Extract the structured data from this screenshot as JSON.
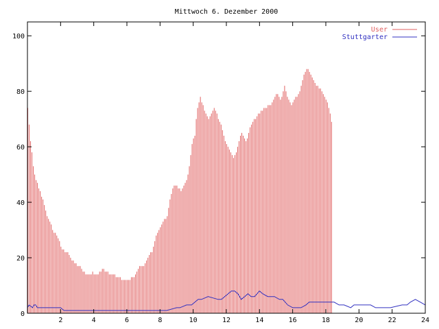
{
  "chart_data": {
    "type": "bar",
    "title": "Mittwoch 6. Dezember 2000",
    "xlabel": "",
    "ylabel": "",
    "xlim": [
      0,
      24
    ],
    "ylim": [
      0,
      105
    ],
    "x_ticks": [
      2,
      4,
      6,
      8,
      10,
      12,
      14,
      16,
      18,
      20,
      22,
      24
    ],
    "y_ticks": [
      0,
      20,
      40,
      60,
      80,
      100
    ],
    "grid": false,
    "legend_position": "top-right",
    "colors": {
      "User": "#e06060",
      "Stuttgarter": "#3030c0",
      "frame": "#000000"
    },
    "series": [
      {
        "name": "User",
        "style": "impulses",
        "x_step_hours": 0.0833,
        "values": [
          74,
          68,
          62,
          58,
          53,
          50,
          48,
          47,
          45,
          44,
          42,
          41,
          39,
          37,
          35,
          34,
          33,
          32,
          30,
          29,
          29,
          28,
          27,
          26,
          24,
          23,
          23,
          22,
          22,
          22,
          21,
          20,
          19,
          19,
          18,
          18,
          17,
          17,
          17,
          16,
          15,
          15,
          14,
          14,
          14,
          14,
          14,
          15,
          14,
          14,
          14,
          14,
          15,
          15,
          16,
          16,
          15,
          15,
          15,
          14,
          14,
          14,
          14,
          14,
          13,
          13,
          13,
          13,
          12,
          12,
          12,
          12,
          12,
          12,
          12,
          13,
          13,
          13,
          14,
          15,
          16,
          17,
          17,
          17,
          17,
          18,
          19,
          20,
          21,
          22,
          22,
          24,
          26,
          28,
          29,
          30,
          31,
          32,
          33,
          34,
          34,
          35,
          38,
          41,
          43,
          45,
          46,
          46,
          46,
          45,
          45,
          44,
          45,
          46,
          47,
          48,
          50,
          53,
          57,
          61,
          63,
          64,
          70,
          74,
          76,
          78,
          76,
          75,
          73,
          72,
          71,
          70,
          71,
          72,
          73,
          74,
          73,
          72,
          70,
          69,
          68,
          66,
          64,
          62,
          61,
          60,
          59,
          58,
          57,
          56,
          57,
          58,
          60,
          62,
          64,
          65,
          64,
          63,
          62,
          63,
          65,
          67,
          68,
          69,
          70,
          70,
          71,
          72,
          72,
          73,
          73,
          74,
          74,
          74,
          75,
          75,
          75,
          76,
          77,
          78,
          79,
          79,
          78,
          77,
          78,
          80,
          82,
          80,
          78,
          77,
          76,
          75,
          76,
          77,
          78,
          78,
          79,
          80,
          82,
          84,
          86,
          87,
          88,
          88,
          87,
          86,
          85,
          84,
          83,
          82,
          82,
          81,
          81,
          80,
          79,
          78,
          77,
          76,
          74,
          72,
          69
        ]
      },
      {
        "name": "Stuttgarter",
        "style": "line",
        "x": [
          0,
          0.1,
          0.3,
          0.4,
          0.5,
          0.6,
          0.8,
          1.0,
          2.0,
          2.2,
          8.4,
          9.0,
          9.2,
          9.6,
          9.9,
          10.3,
          10.5,
          10.9,
          11.5,
          11.7,
          12.1,
          12.3,
          12.5,
          12.7,
          12.9,
          13.1,
          13.3,
          13.5,
          13.7,
          14.0,
          14.2,
          14.5,
          14.9,
          15.2,
          15.4,
          15.7,
          16.0,
          16.5,
          16.8,
          17.0,
          18.5,
          18.8,
          19.1,
          19.5,
          19.7,
          19.9,
          20.1,
          20.7,
          21.0,
          21.9,
          22.6,
          22.9,
          23.1,
          23.4,
          23.7,
          24.0
        ],
        "values": [
          2,
          3,
          2,
          3,
          3,
          2,
          2,
          2,
          2,
          1,
          1,
          2,
          2,
          3,
          3,
          5,
          5,
          6,
          5,
          5,
          7,
          8,
          8,
          7,
          5,
          6,
          7,
          6,
          6,
          8,
          7,
          6,
          6,
          5,
          5,
          3,
          2,
          2,
          3,
          4,
          4,
          3,
          3,
          2,
          3,
          3,
          3,
          3,
          2,
          2,
          3,
          3,
          4,
          5,
          4,
          3
        ]
      }
    ]
  }
}
